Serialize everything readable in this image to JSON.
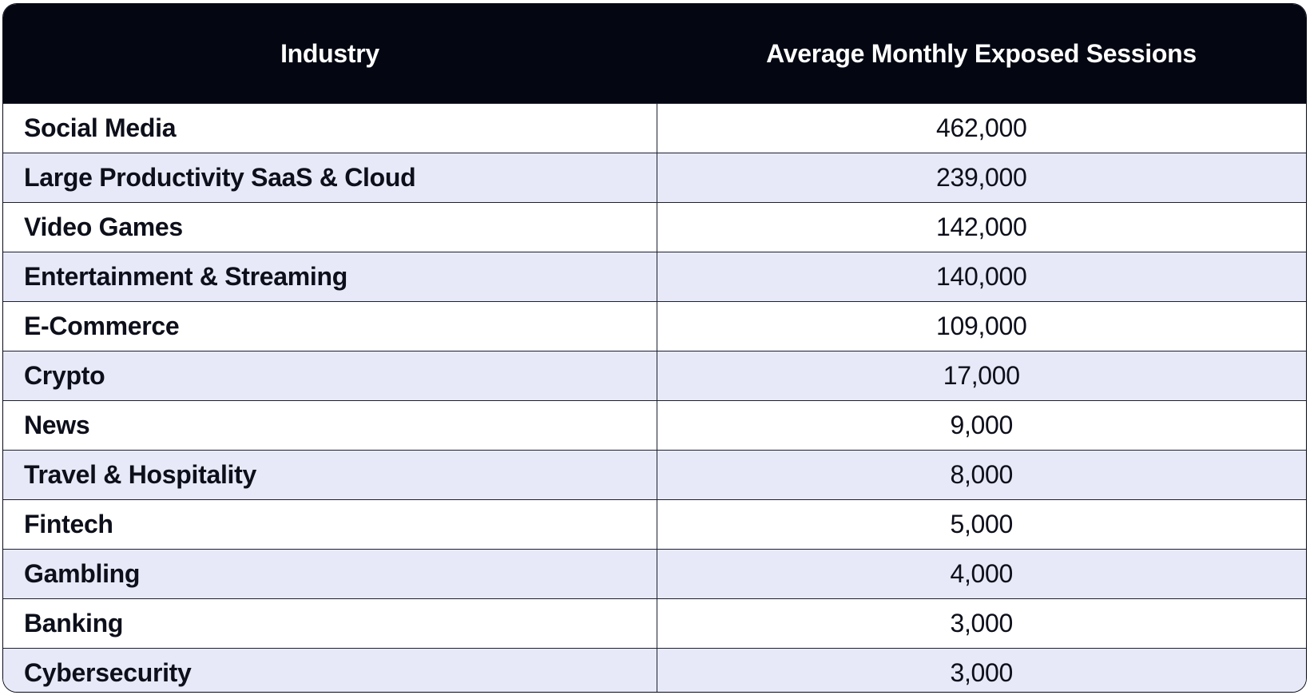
{
  "chart_data": {
    "type": "table",
    "columns": [
      "Industry",
      "Average Monthly Exposed Sessions"
    ],
    "rows": [
      {
        "industry": "Social Media",
        "value": "462,000"
      },
      {
        "industry": "Large Productivity SaaS & Cloud",
        "value": "239,000"
      },
      {
        "industry": "Video Games",
        "value": "142,000"
      },
      {
        "industry": "Entertainment & Streaming",
        "value": "140,000"
      },
      {
        "industry": "E-Commerce",
        "value": "109,000"
      },
      {
        "industry": "Crypto",
        "value": "17,000"
      },
      {
        "industry": "News",
        "value": "9,000"
      },
      {
        "industry": "Travel & Hospitality",
        "value": "8,000"
      },
      {
        "industry": "Fintech",
        "value": "5,000"
      },
      {
        "industry": "Gambling",
        "value": "4,000"
      },
      {
        "industry": "Banking",
        "value": "3,000"
      },
      {
        "industry": "Cybersecurity",
        "value": "3,000"
      }
    ]
  },
  "colors": {
    "header_bg": "#040712",
    "header_text": "#ffffff",
    "stripe_bg": "#e7e9f8",
    "row_bg": "#ffffff",
    "border": "#1d2030",
    "text": "#0d0f1a"
  }
}
